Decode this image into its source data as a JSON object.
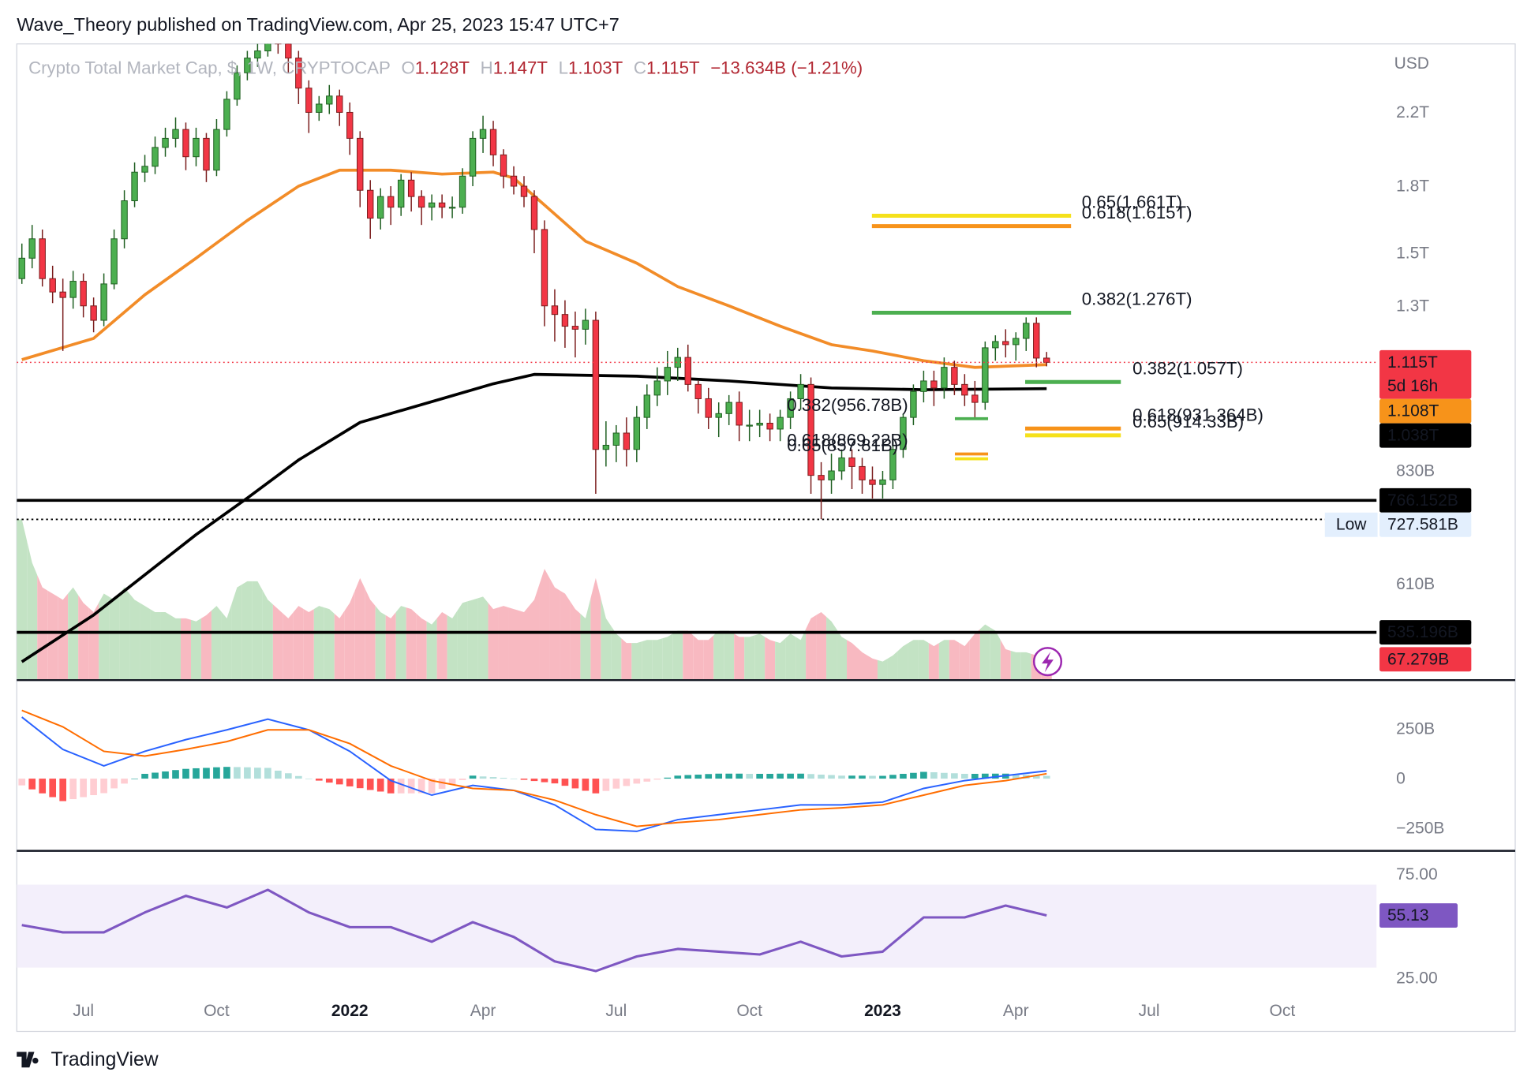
{
  "chart_data": {
    "type": "candlestick",
    "header": "Wave_Theory published on TradingView.com, Apr 25, 2023 15:47 UTC+7",
    "legend": {
      "symbol": "Crypto Total Market Cap, $, 1W, CRYPTOCAP",
      "items": [
        {
          "key": "O",
          "value": "1.128T"
        },
        {
          "key": "H",
          "value": "1.147T"
        },
        {
          "key": "L",
          "value": "1.103T"
        },
        {
          "key": "C",
          "value": "1.115T"
        }
      ],
      "change": "−13.634B (−1.21%)"
    },
    "currency": "USD",
    "xlim": [
      -0.5,
      132.2
    ],
    "xticks": [
      {
        "value": 6,
        "label": "Jul"
      },
      {
        "value": 19,
        "label": "Oct"
      },
      {
        "value": 32,
        "label": "2022"
      },
      {
        "value": 45,
        "label": "Apr"
      },
      {
        "value": 58,
        "label": "Jul"
      },
      {
        "value": 71,
        "label": "Oct"
      },
      {
        "value": 84,
        "label": "2023"
      },
      {
        "value": 97,
        "label": "Apr"
      },
      {
        "value": 110,
        "label": "Jul"
      },
      {
        "value": 123,
        "label": "Oct"
      }
    ],
    "ylim": [
      470,
      2650
    ],
    "log_scale": true,
    "grid": false,
    "yticks": [
      {
        "value": 2200,
        "label": "2.2T"
      },
      {
        "value": 1800,
        "label": "1.8T"
      },
      {
        "value": 1500,
        "label": "1.5T"
      },
      {
        "value": 1300,
        "label": "1.3T"
      },
      {
        "value": 830,
        "label": "830B"
      },
      {
        "value": 610,
        "label": "610B"
      }
    ],
    "up_color": "#4caf50",
    "up_border": "#1e5e20",
    "down_color": "#f23645",
    "down_border": "#7a1c1c",
    "open": [
      1400,
      1480,
      1560,
      1400,
      1350,
      1330,
      1390,
      1300,
      1250,
      1380,
      1560,
      1730,
      1870,
      1900,
      2000,
      2050,
      2100,
      1950,
      2050,
      1880,
      2100,
      2280,
      2450,
      2550,
      2600,
      2700,
      2650,
      2550,
      2350,
      2200,
      2250,
      2300,
      2200,
      2050,
      1780,
      1650,
      1750,
      1700,
      1830,
      1750,
      1700,
      1720,
      1700,
      1700,
      1850,
      2050,
      2100,
      1960,
      1850,
      1800,
      1750,
      1600,
      1300,
      1270,
      1230,
      1220,
      1250,
      880,
      890,
      920,
      880,
      960,
      1020,
      1060,
      1100,
      1130,
      1050,
      1010,
      960,
      970,
      1000,
      940,
      940,
      945,
      930,
      960,
      1010,
      1050,
      820,
      810,
      830,
      860,
      840,
      810,
      800,
      810,
      880,
      960,
      1030,
      1060,
      1040,
      1100,
      1050,
      1020,
      1000,
      1160,
      1180,
      1170,
      1190,
      1240,
      1128
    ],
    "high": [
      1540,
      1620,
      1600,
      1450,
      1400,
      1430,
      1420,
      1330,
      1420,
      1600,
      1780,
      1920,
      1960,
      2060,
      2110,
      2170,
      2140,
      2110,
      2080,
      2160,
      2330,
      2500,
      2600,
      2650,
      2760,
      2780,
      2700,
      2600,
      2400,
      2300,
      2370,
      2340,
      2260,
      2090,
      1830,
      1790,
      1800,
      1860,
      1870,
      1780,
      1760,
      1760,
      1750,
      1890,
      2090,
      2180,
      2150,
      1990,
      1900,
      1850,
      1780,
      1640,
      1360,
      1320,
      1280,
      1290,
      1280,
      950,
      940,
      960,
      990,
      1050,
      1100,
      1150,
      1160,
      1170,
      1060,
      1040,
      1000,
      1020,
      1030,
      980,
      980,
      970,
      980,
      1030,
      1080,
      1070,
      850,
      870,
      880,
      880,
      860,
      840,
      830,
      900,
      970,
      1050,
      1090,
      1090,
      1130,
      1120,
      1080,
      1060,
      1180,
      1200,
      1220,
      1210,
      1260,
      1260,
      1147
    ],
    "low": [
      1380,
      1440,
      1370,
      1310,
      1150,
      1290,
      1260,
      1210,
      1230,
      1360,
      1520,
      1700,
      1820,
      1860,
      1950,
      2000,
      1880,
      1900,
      1820,
      1850,
      2060,
      2240,
      2400,
      2490,
      2560,
      2580,
      2450,
      2250,
      2080,
      2150,
      2190,
      2120,
      1960,
      1700,
      1560,
      1600,
      1620,
      1660,
      1680,
      1620,
      1640,
      1650,
      1650,
      1670,
      1800,
      1970,
      1900,
      1790,
      1760,
      1700,
      1500,
      1230,
      1180,
      1160,
      1130,
      1170,
      780,
      840,
      850,
      840,
      850,
      930,
      990,
      1020,
      1060,
      1030,
      970,
      930,
      910,
      940,
      900,
      900,
      910,
      900,
      900,
      930,
      980,
      780,
      728,
      780,
      810,
      790,
      780,
      770,
      770,
      790,
      860,
      940,
      1000,
      990,
      1010,
      1020,
      990,
      960,
      980,
      1120,
      1130,
      1120,
      1150,
      1100,
      1103
    ],
    "close": [
      1480,
      1560,
      1400,
      1350,
      1330,
      1390,
      1300,
      1250,
      1380,
      1560,
      1730,
      1870,
      1900,
      2000,
      2050,
      2100,
      1950,
      2050,
      1880,
      2100,
      2280,
      2450,
      2550,
      2600,
      2700,
      2650,
      2550,
      2350,
      2200,
      2250,
      2300,
      2200,
      2050,
      1780,
      1650,
      1750,
      1700,
      1830,
      1750,
      1700,
      1720,
      1700,
      1700,
      1850,
      2050,
      2100,
      1960,
      1850,
      1800,
      1750,
      1600,
      1300,
      1270,
      1230,
      1220,
      1250,
      880,
      890,
      920,
      880,
      960,
      1020,
      1060,
      1100,
      1130,
      1050,
      1010,
      960,
      970,
      1000,
      940,
      940,
      945,
      930,
      960,
      1010,
      1050,
      820,
      810,
      830,
      860,
      840,
      810,
      800,
      810,
      880,
      960,
      1030,
      1060,
      1040,
      1100,
      1050,
      1020,
      1000,
      1160,
      1180,
      1170,
      1190,
      1240,
      1128,
      1115
    ],
    "moving_averages": [
      {
        "color": "#f28c28",
        "x": [
          0,
          7,
          12,
          17,
          22,
          27,
          31,
          36,
          41,
          46,
          48,
          51,
          55,
          60,
          64,
          69,
          74,
          79,
          83,
          88,
          93,
          100
        ],
        "values": [
          1123,
          1190,
          1340,
          1480,
          1640,
          1800,
          1880,
          1880,
          1860,
          1870,
          1840,
          1710,
          1550,
          1460,
          1370,
          1300,
          1230,
          1170,
          1150,
          1120,
          1100,
          1108
        ]
      },
      {
        "color": "#000000",
        "x": [
          0,
          7,
          17,
          22,
          27,
          33,
          41,
          46,
          50,
          60,
          69,
          79,
          88,
          100
        ],
        "values": [
          494,
          561,
          698,
          771,
          855,
          947,
          1010,
          1052,
          1079,
          1074,
          1060,
          1040,
          1035,
          1038
        ]
      }
    ],
    "horizontal_lines": [
      {
        "value": 766.152,
        "label": "766.152B"
      },
      {
        "value": 535.196,
        "label": "535.196B"
      }
    ],
    "low_marker": {
      "name": "Low",
      "value": 727.581,
      "label": "727.581B"
    },
    "price_labels": [
      {
        "value": 1115,
        "label": "1.115T",
        "countdown": "5d 16h",
        "color": "#f23645"
      },
      {
        "value": 1108,
        "label": "1.108T",
        "color": "#f7931a"
      },
      {
        "value": 1038,
        "label": "1.038T",
        "color": "#000000"
      }
    ],
    "fibonacci": [
      {
        "label": "0.65(1.661T)",
        "value": 1661,
        "color": "#f5e11b"
      },
      {
        "label": "0.618(1.615T)",
        "value": 1615,
        "color": "#f7931a"
      },
      {
        "label": "0.382(1.276T)",
        "value": 1276,
        "color": "#4caf50"
      },
      {
        "label": "0.382(1.057T)",
        "value": 1057,
        "color": "#4caf50"
      },
      {
        "label": "0.618(931.364B)",
        "value": 931.364,
        "color": "#f7931a"
      },
      {
        "label": "0.65(914.33B)",
        "value": 914.33,
        "color": "#f5e11b"
      },
      {
        "label": "0.382(956.78B)",
        "value": 956.78,
        "color": "#4caf50"
      },
      {
        "label": "0.618(869.22B)",
        "value": 869.22,
        "color": "#f7931a"
      },
      {
        "label": "0.65(857.81B)",
        "value": 857.81,
        "color": "#f5e11b"
      }
    ],
    "volume": {
      "ylim": [
        0,
        600
      ],
      "up_color": "#c3e3c4",
      "down_color": "#f8b9c1",
      "values": [
        520,
        380,
        300,
        280,
        260,
        300,
        250,
        220,
        280,
        260,
        300,
        260,
        240,
        220,
        220,
        200,
        200,
        190,
        210,
        240,
        200,
        300,
        320,
        320,
        260,
        230,
        200,
        240,
        220,
        240,
        230,
        200,
        250,
        330,
        260,
        220,
        200,
        240,
        230,
        200,
        180,
        220,
        200,
        250,
        260,
        270,
        230,
        240,
        230,
        220,
        260,
        360,
        300,
        280,
        230,
        200,
        330,
        200,
        150,
        120,
        120,
        130,
        130,
        140,
        160,
        160,
        130,
        130,
        160,
        160,
        140,
        140,
        150,
        130,
        120,
        150,
        130,
        200,
        220,
        190,
        140,
        120,
        90,
        70,
        60,
        80,
        110,
        130,
        130,
        110,
        130,
        130,
        110,
        150,
        180,
        160,
        100,
        90,
        90,
        80,
        67.279
      ],
      "last_label": "67.279B"
    },
    "macd": {
      "ylim": [
        -363,
        495
      ],
      "yticks": [
        {
          "value": 250,
          "label": "250B"
        },
        0,
        {
          "value": -250,
          "label": "−250B"
        }
      ],
      "x": [
        0,
        4,
        8,
        12,
        16,
        20,
        24,
        28,
        32,
        36,
        40,
        44,
        48,
        52,
        56,
        60,
        64,
        68,
        72,
        76,
        80,
        84,
        88,
        92,
        96,
        100
      ],
      "macd": [
        309,
        147,
        64,
        137,
        196,
        245,
        299,
        245,
        137,
        -10,
        -83,
        -34,
        -59,
        -132,
        -255,
        -265,
        -206,
        -181,
        -157,
        -132,
        -132,
        -118,
        -49,
        -10,
        15,
        39
      ],
      "signal": [
        343,
        260,
        137,
        113,
        147,
        186,
        245,
        245,
        176,
        64,
        -10,
        -49,
        -59,
        -108,
        -181,
        -240,
        -221,
        -206,
        -181,
        -157,
        -147,
        -132,
        -83,
        -34,
        -10,
        25
      ],
      "macd_color": "#2962ff",
      "signal_color": "#ff6d00",
      "histogram": [
        -34,
        -54,
        -74,
        -93,
        -113,
        -103,
        -93,
        -83,
        -73,
        -49,
        -25,
        0,
        24,
        30,
        36,
        43,
        49,
        52,
        54,
        57,
        59,
        58,
        57,
        55,
        54,
        40,
        27,
        13,
        0,
        -10,
        -20,
        -29,
        -39,
        -48,
        -57,
        -65,
        -74,
        -74,
        -74,
        -73,
        -73,
        -51,
        -29,
        -7,
        15,
        11,
        8,
        4,
        0,
        -6,
        -12,
        -18,
        -24,
        -36,
        -49,
        -61,
        -74,
        -62,
        -50,
        -37,
        -25,
        -15,
        -5,
        5,
        15,
        18,
        20,
        23,
        25,
        25,
        25,
        24,
        24,
        24,
        25,
        25,
        25,
        23,
        20,
        18,
        15,
        15,
        15,
        14,
        14,
        19,
        24,
        29,
        34,
        32,
        29,
        27,
        24,
        24,
        25,
        25,
        25,
        22,
        19,
        17,
        14
      ],
      "histogram_colors": [
        "#26a69a",
        "#b2dfdb",
        "#ff5252",
        "#ffcdd2"
      ]
    },
    "rsi": {
      "ylim": [
        19,
        86.3
      ],
      "yticks": [
        {
          "value": 75,
          "label": "75.00"
        },
        {
          "value": 25,
          "label": "25.00"
        }
      ],
      "band": [
        30,
        70
      ],
      "color": "#7e57c2",
      "band_color": "#f3effb",
      "x": [
        0,
        4,
        8,
        12,
        16,
        20,
        24,
        28,
        32,
        36,
        40,
        44,
        48,
        52,
        56,
        60,
        64,
        68,
        72,
        76,
        80,
        84,
        88,
        92,
        96,
        100
      ],
      "values": [
        50.5,
        47,
        47,
        56.6,
        64.6,
        59,
        67.5,
        56.6,
        49.5,
        49.5,
        42.5,
        51.9,
        44.8,
        33,
        28.3,
        35.4,
        39,
        37.7,
        36.3,
        42.5,
        35.4,
        37.7,
        54.2,
        54.2,
        59.9,
        55.13
      ]
    },
    "footer": "TradingView"
  }
}
